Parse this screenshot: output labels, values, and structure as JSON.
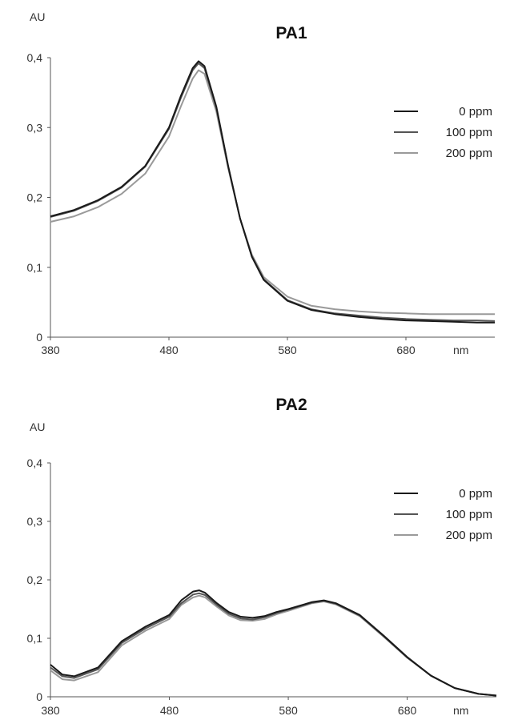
{
  "chart_data": [
    {
      "type": "line",
      "title": "PA1",
      "ylabel": "AU",
      "xlabel": "nm",
      "xlim": [
        380,
        755
      ],
      "ylim": [
        0,
        0.4
      ],
      "x_ticks": [
        380,
        480,
        580,
        680
      ],
      "x_tick_labels": [
        "380",
        "480",
        "580",
        "680"
      ],
      "y_ticks": [
        0,
        0.1,
        0.2,
        0.3,
        0.4
      ],
      "y_tick_labels": [
        "0",
        "0,1",
        "0,2",
        "0,3",
        "0,4"
      ],
      "grid": false,
      "legend_position": "right",
      "x": [
        380,
        400,
        420,
        440,
        460,
        480,
        490,
        500,
        505,
        510,
        520,
        530,
        540,
        550,
        560,
        580,
        600,
        620,
        640,
        660,
        680,
        700,
        720,
        740,
        755
      ],
      "series": [
        {
          "name": "0 ppm",
          "color": "#1a1a1a",
          "values": [
            0.173,
            0.182,
            0.196,
            0.215,
            0.245,
            0.3,
            0.345,
            0.385,
            0.395,
            0.388,
            0.33,
            0.245,
            0.17,
            0.115,
            0.082,
            0.052,
            0.039,
            0.033,
            0.029,
            0.026,
            0.024,
            0.023,
            0.022,
            0.021,
            0.021
          ]
        },
        {
          "name": "100 ppm",
          "color": "#555555",
          "values": [
            0.172,
            0.181,
            0.195,
            0.214,
            0.244,
            0.298,
            0.342,
            0.382,
            0.392,
            0.385,
            0.328,
            0.244,
            0.17,
            0.116,
            0.083,
            0.053,
            0.04,
            0.034,
            0.031,
            0.028,
            0.026,
            0.025,
            0.024,
            0.024,
            0.023
          ]
        },
        {
          "name": "200 ppm",
          "color": "#9a9a9a",
          "values": [
            0.165,
            0.173,
            0.186,
            0.205,
            0.234,
            0.287,
            0.33,
            0.37,
            0.382,
            0.377,
            0.323,
            0.242,
            0.17,
            0.118,
            0.086,
            0.058,
            0.045,
            0.04,
            0.037,
            0.035,
            0.034,
            0.033,
            0.033,
            0.033,
            0.033
          ]
        }
      ]
    },
    {
      "type": "line",
      "title": "PA2",
      "ylabel": "AU",
      "xlabel": "nm",
      "xlim": [
        380,
        755
      ],
      "ylim": [
        0,
        0.4
      ],
      "x_ticks": [
        380,
        480,
        580,
        680
      ],
      "x_tick_labels": [
        "380",
        "480",
        "580",
        "680"
      ],
      "y_ticks": [
        0,
        0.1,
        0.2,
        0.3,
        0.4
      ],
      "y_tick_labels": [
        "0",
        "0,1",
        "0,2",
        "0,3",
        "0,4"
      ],
      "grid": false,
      "legend_position": "right",
      "x": [
        380,
        390,
        400,
        420,
        440,
        460,
        480,
        490,
        500,
        505,
        510,
        520,
        530,
        540,
        550,
        560,
        570,
        580,
        600,
        610,
        620,
        640,
        660,
        680,
        700,
        720,
        740,
        755
      ],
      "series": [
        {
          "name": "0 ppm",
          "color": "#1a1a1a",
          "values": [
            0.055,
            0.038,
            0.035,
            0.05,
            0.095,
            0.12,
            0.14,
            0.165,
            0.18,
            0.182,
            0.178,
            0.16,
            0.145,
            0.137,
            0.135,
            0.138,
            0.145,
            0.15,
            0.162,
            0.165,
            0.16,
            0.14,
            0.105,
            0.068,
            0.036,
            0.015,
            0.005,
            0.002
          ]
        },
        {
          "name": "100 ppm",
          "color": "#555555",
          "values": [
            0.05,
            0.035,
            0.032,
            0.047,
            0.092,
            0.117,
            0.137,
            0.16,
            0.175,
            0.177,
            0.174,
            0.157,
            0.142,
            0.134,
            0.132,
            0.136,
            0.143,
            0.149,
            0.161,
            0.164,
            0.159,
            0.139,
            0.104,
            0.067,
            0.036,
            0.015,
            0.005,
            0.002
          ]
        },
        {
          "name": "200 ppm",
          "color": "#9a9a9a",
          "values": [
            0.045,
            0.03,
            0.028,
            0.042,
            0.088,
            0.113,
            0.133,
            0.157,
            0.17,
            0.173,
            0.17,
            0.154,
            0.139,
            0.131,
            0.13,
            0.133,
            0.141,
            0.147,
            0.16,
            0.163,
            0.158,
            0.138,
            0.103,
            0.067,
            0.036,
            0.015,
            0.005,
            0.002
          ]
        }
      ]
    }
  ]
}
